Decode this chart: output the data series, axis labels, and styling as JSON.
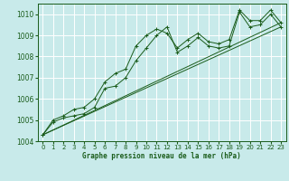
{
  "bg_color": "#c8eaea",
  "grid_color": "#ffffff",
  "line_color": "#1a5c1a",
  "marker": "+",
  "title": "Graphe pression niveau de la mer (hPa)",
  "xlim": [
    -0.5,
    23.5
  ],
  "ylim": [
    1004,
    1010.5
  ],
  "yticks": [
    1004,
    1005,
    1006,
    1007,
    1008,
    1009,
    1010
  ],
  "xticks": [
    0,
    1,
    2,
    3,
    4,
    5,
    6,
    7,
    8,
    9,
    10,
    11,
    12,
    13,
    14,
    15,
    16,
    17,
    18,
    19,
    20,
    21,
    22,
    23
  ],
  "series": [
    {
      "x": [
        0,
        1,
        2,
        3,
        4,
        5,
        6,
        7,
        8,
        9,
        10,
        11,
        12,
        13,
        14,
        15,
        16,
        17,
        18,
        19,
        20,
        21,
        22,
        23
      ],
      "y": [
        1004.3,
        1004.9,
        1005.1,
        1005.2,
        1005.3,
        1005.6,
        1006.5,
        1006.6,
        1007.0,
        1007.8,
        1008.4,
        1009.0,
        1009.4,
        1008.2,
        1008.5,
        1008.9,
        1008.5,
        1008.4,
        1008.5,
        1010.1,
        1009.4,
        1009.5,
        1010.0,
        1009.4
      ],
      "has_markers": true
    },
    {
      "x": [
        0,
        1,
        2,
        3,
        4,
        5,
        6,
        7,
        8,
        9,
        10,
        11,
        12,
        13,
        14,
        15,
        16,
        17,
        18,
        19,
        20,
        21,
        22,
        23
      ],
      "y": [
        1004.3,
        1005.0,
        1005.2,
        1005.5,
        1005.6,
        1006.0,
        1006.8,
        1007.2,
        1007.4,
        1008.5,
        1009.0,
        1009.3,
        1009.1,
        1008.4,
        1008.8,
        1009.1,
        1008.7,
        1008.6,
        1008.8,
        1010.2,
        1009.7,
        1009.7,
        1010.2,
        1009.6
      ],
      "has_markers": true
    },
    {
      "x": [
        0,
        23
      ],
      "y": [
        1004.3,
        1009.4
      ],
      "has_markers": false
    },
    {
      "x": [
        0,
        23
      ],
      "y": [
        1004.3,
        1009.6
      ],
      "has_markers": false
    }
  ]
}
